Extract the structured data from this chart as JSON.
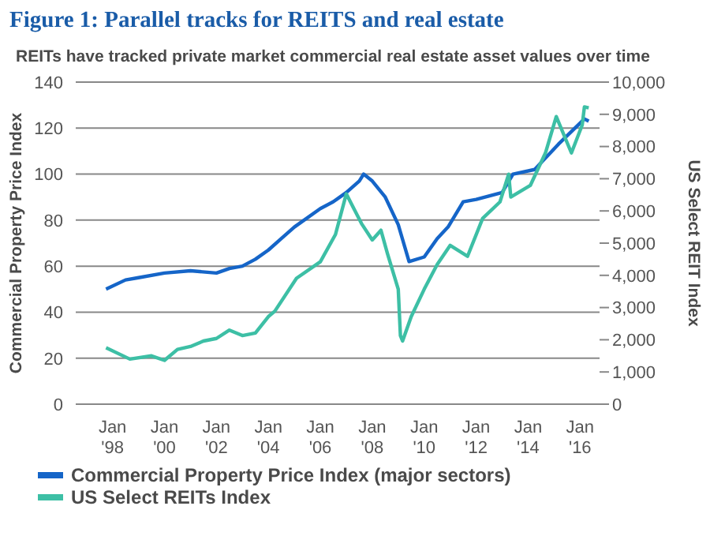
{
  "chart_data": {
    "type": "line",
    "title": "Figure 1:  Parallel tracks for REITS and real estate",
    "subtitle": "REITs have tracked private market commercial real estate asset values over time",
    "ylabel": "Commercial Property Price Index",
    "y2label": "US Select REIT Index",
    "xlim": [
      "1996-08",
      "2016-10"
    ],
    "xticks": [
      {
        "value": "1998-01",
        "label": "Jan '98"
      },
      {
        "value": "2000-01",
        "label": "Jan '00"
      },
      {
        "value": "2002-01",
        "label": "Jan '02"
      },
      {
        "value": "2004-01",
        "label": "Jan '04"
      },
      {
        "value": "2006-01",
        "label": "Jan '06"
      },
      {
        "value": "2008-01",
        "label": "Jan '08"
      },
      {
        "value": "2010-01",
        "label": "Jan '10"
      },
      {
        "value": "2012-01",
        "label": "Jan '12"
      },
      {
        "value": "2014-01",
        "label": "Jan '14"
      },
      {
        "value": "2016-01",
        "label": "Jan '16"
      }
    ],
    "ylim": [
      0,
      140
    ],
    "yticks": [
      0,
      20,
      40,
      60,
      80,
      100,
      120,
      140
    ],
    "y2lim": [
      0,
      10000
    ],
    "y2ticks": [
      {
        "value": 0,
        "label": "0"
      },
      {
        "value": 1000,
        "label": "1,000"
      },
      {
        "value": 2000,
        "label": "2,000"
      },
      {
        "value": 3000,
        "label": "3,000"
      },
      {
        "value": 4000,
        "label": "4,000"
      },
      {
        "value": 5000,
        "label": "5,000"
      },
      {
        "value": 6000,
        "label": "6,000"
      },
      {
        "value": 7000,
        "label": "7,000"
      },
      {
        "value": 8000,
        "label": "8,000"
      },
      {
        "value": 9000,
        "label": "9,000"
      },
      {
        "value": 10000,
        "label": "10,000"
      }
    ],
    "grid": "y",
    "legend": "bottom",
    "marker": "none",
    "line_style": "solid",
    "series": [
      {
        "name": "Commercial Property Price Index (major sectors)",
        "color": "#1565c8",
        "x": [
          "1997-10",
          "1998-07",
          "1999-01",
          "2000-01",
          "2001-01",
          "2002-01",
          "2002-07",
          "2003-01",
          "2003-07",
          "2004-01",
          "2004-07",
          "2005-01",
          "2006-01",
          "2006-07",
          "2007-01",
          "2007-07",
          "2007-09",
          "2008-01",
          "2008-07",
          "2009-01",
          "2009-06",
          "2010-01",
          "2010-07",
          "2010-12",
          "2011-07",
          "2012-01",
          "2013-01",
          "2013-06",
          "2014-04",
          "2015-03",
          "2016-03",
          "2016-05"
        ],
        "values": [
          50,
          54,
          55,
          57,
          58,
          57,
          59,
          60,
          63,
          67,
          72,
          77,
          85,
          88,
          92,
          97,
          100,
          97,
          90,
          78,
          62,
          64,
          72,
          77,
          88,
          89,
          92,
          100,
          102,
          113,
          124,
          123
        ]
      },
      {
        "name": "US Select REITs Index",
        "color": "#3dbfa5",
        "axis": "y2",
        "x": [
          "1997-10",
          "1998-09",
          "1999-07",
          "2000-01",
          "2000-07",
          "2001-01",
          "2001-07",
          "2002-01",
          "2002-07",
          "2003-01",
          "2003-07",
          "2004-01",
          "2004-04",
          "2005-02",
          "2006-01",
          "2006-08",
          "2007-01",
          "2007-08",
          "2008-01",
          "2008-05",
          "2008-08",
          "2009-01",
          "2009-02",
          "2009-03",
          "2009-07",
          "2010-01",
          "2010-07",
          "2011-01",
          "2011-09",
          "2012-04",
          "2012-12",
          "2013-04",
          "2013-05",
          "2014-02",
          "2014-09",
          "2015-02",
          "2015-09",
          "2016-02",
          "2016-03",
          "2016-05"
        ],
        "values": [
          1750,
          1400,
          1500,
          1360,
          1700,
          1790,
          1960,
          2040,
          2300,
          2130,
          2210,
          2720,
          2890,
          3910,
          4420,
          5270,
          6530,
          5610,
          5100,
          5400,
          4680,
          3570,
          2130,
          1960,
          2720,
          3570,
          4340,
          4930,
          4590,
          5770,
          6280,
          7140,
          6430,
          6790,
          7800,
          8930,
          7800,
          8670,
          9230,
          9200
        ]
      }
    ]
  }
}
